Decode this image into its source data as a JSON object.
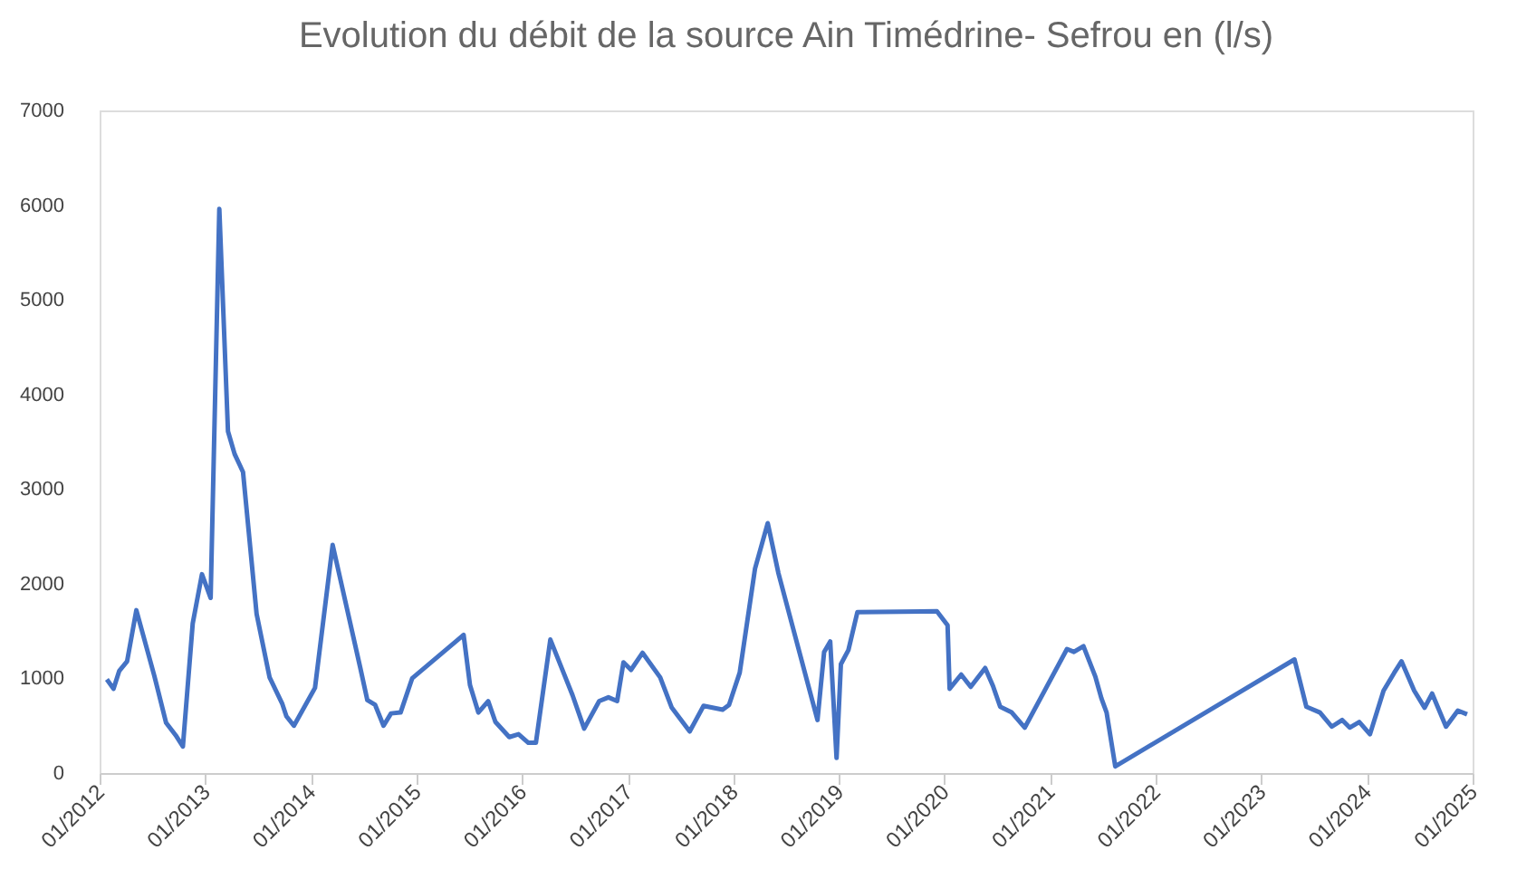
{
  "chart_data": {
    "type": "line",
    "title": "Evolution du débit de la source Ain Timédrine- Sefrou en (l/s)",
    "x": [
      "2012-01-26",
      "2012-02-18",
      "2012-03-09",
      "2012-04-05",
      "2012-05-07",
      "2012-07-08",
      "2012-08-18",
      "2012-09-20",
      "2012-10-15",
      "2012-11-18",
      "2012-12-20",
      "2013-01-19",
      "2013-02-18",
      "2013-03-20",
      "2013-04-12",
      "2013-05-11",
      "2013-06-27",
      "2013-08-11",
      "2013-09-24",
      "2013-10-08",
      "2013-11-03",
      "2014-01-15",
      "2014-03-17",
      "2014-06-20",
      "2014-07-15",
      "2014-08-11",
      "2014-09-09",
      "2014-10-05",
      "2014-11-07",
      "2014-12-17",
      "2015-06-13",
      "2015-07-05",
      "2015-08-03",
      "2015-09-06",
      "2015-10-01",
      "2015-11-18",
      "2015-12-20",
      "2016-01-23",
      "2016-02-18",
      "2016-04-08",
      "2016-06-24",
      "2016-08-03",
      "2016-09-24",
      "2016-10-26",
      "2016-11-25",
      "2016-12-17",
      "2017-01-12",
      "2017-02-21",
      "2017-04-23",
      "2017-06-02",
      "2017-08-03",
      "2017-09-20",
      "2017-11-25",
      "2017-12-17",
      "2018-01-23",
      "2018-03-17",
      "2018-04-30",
      "2018-06-06",
      "2018-10-19",
      "2018-11-11",
      "2018-12-02",
      "2018-12-24",
      "2019-01-08",
      "2019-02-03",
      "2019-03-06",
      "2019-12-06",
      "2020-01-12",
      "2020-01-19",
      "2020-02-28",
      "2020-04-01",
      "2020-05-21",
      "2020-06-17",
      "2020-07-12",
      "2020-08-21",
      "2020-10-05",
      "2021-02-28",
      "2021-03-24",
      "2021-04-26",
      "2021-06-06",
      "2021-06-27",
      "2021-07-15",
      "2021-08-14",
      "2023-04-26",
      "2023-06-06",
      "2023-07-23",
      "2023-09-02",
      "2023-10-08",
      "2023-11-03",
      "2023-12-06",
      "2024-01-12",
      "2024-02-28",
      "2024-04-05",
      "2024-04-30",
      "2024-06-13",
      "2024-07-19",
      "2024-08-14",
      "2024-10-01",
      "2024-11-11",
      "2024-12-13"
    ],
    "series": [
      {
        "color": "#4472c4",
        "values": [
          990,
          890,
          1080,
          1180,
          1720,
          1030,
          530,
          400,
          280,
          1580,
          2100,
          1850,
          5960,
          3610,
          3370,
          3180,
          1680,
          1010,
          730,
          600,
          500,
          900,
          2410,
          1120,
          770,
          720,
          500,
          630,
          640,
          1000,
          1460,
          930,
          640,
          760,
          540,
          380,
          410,
          320,
          320,
          1410,
          820,
          470,
          760,
          800,
          760,
          1170,
          1090,
          1270,
          1010,
          690,
          440,
          710,
          670,
          720,
          1060,
          2160,
          2640,
          2110,
          560,
          1280,
          1390,
          160,
          1150,
          1300,
          1700,
          1710,
          1560,
          890,
          1040,
          910,
          1110,
          920,
          700,
          640,
          480,
          1310,
          1280,
          1340,
          1020,
          790,
          640,
          70,
          1200,
          700,
          640,
          490,
          560,
          480,
          540,
          410,
          870,
          1060,
          1180,
          870,
          690,
          840,
          490,
          660,
          620
        ]
      }
    ],
    "xlim": [
      "2012-01",
      "2025-01"
    ],
    "xticks": [
      {
        "value": "2012-01",
        "label": "01/2012"
      },
      {
        "value": "2013-01",
        "label": "01/2013"
      },
      {
        "value": "2014-01",
        "label": "01/2014"
      },
      {
        "value": "2015-01",
        "label": "01/2015"
      },
      {
        "value": "2016-01",
        "label": "01/2016"
      },
      {
        "value": "2017-01",
        "label": "01/2017"
      },
      {
        "value": "2018-01",
        "label": "01/2018"
      },
      {
        "value": "2019-01",
        "label": "01/2019"
      },
      {
        "value": "2020-01",
        "label": "01/2020"
      },
      {
        "value": "2021-01",
        "label": "01/2021"
      },
      {
        "value": "2022-01",
        "label": "01/2022"
      },
      {
        "value": "2023-01",
        "label": "01/2023"
      },
      {
        "value": "2024-01",
        "label": "01/2024"
      },
      {
        "value": "2025-01",
        "label": "01/2025"
      }
    ],
    "ylim": [
      0,
      7000
    ],
    "yticks": [
      0,
      1000,
      2000,
      3000,
      4000,
      5000,
      6000,
      7000
    ],
    "grid": false,
    "legend": false,
    "marker": "none",
    "line_style": "solid"
  }
}
